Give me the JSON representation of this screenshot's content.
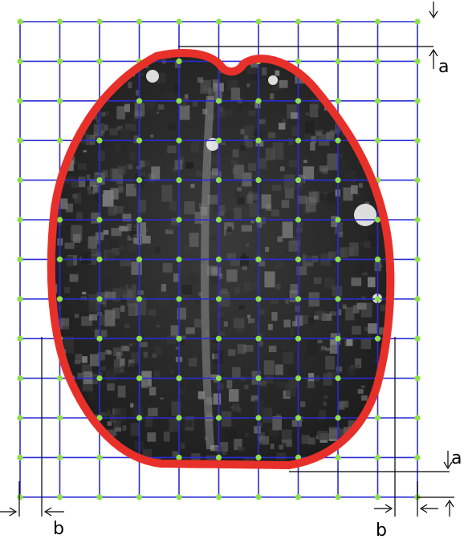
{
  "labels": {
    "a_top": "a",
    "a_bottom": "a",
    "b_left": "b",
    "b_right": "b"
  },
  "grid": {
    "columns": 11,
    "rows": 13,
    "line_color": "#2b2bd6",
    "node_color": "#8de04a"
  },
  "colors": {
    "contour": "#e8302a",
    "brain_tissue": "#2e2e2e",
    "background": "#ffffff",
    "annotation": "#000000"
  }
}
